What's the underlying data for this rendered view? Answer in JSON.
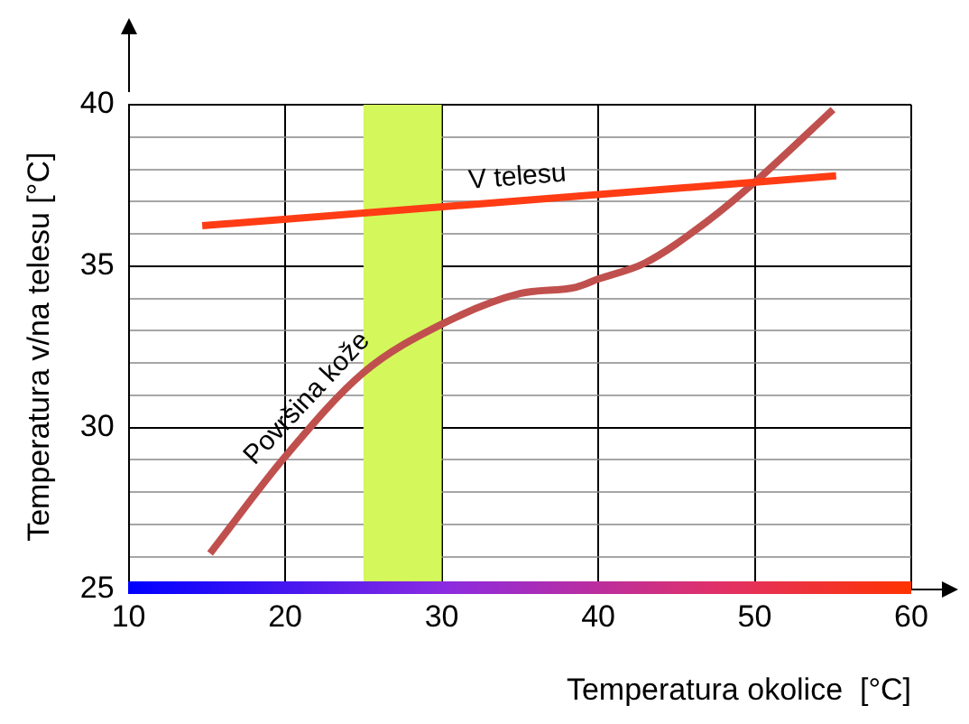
{
  "chart_data": {
    "type": "line",
    "xlabel": "Temperatura okolice  [°C]",
    "ylabel": "Temperatura v/na telesu [°C]",
    "xlim": [
      10,
      60
    ],
    "xticks": [
      10,
      20,
      30,
      40,
      50,
      60
    ],
    "ylim": [
      25,
      40
    ],
    "yticks": [
      25,
      {
        "value": 26,
        "label": null
      },
      {
        "value": 27,
        "label": null
      },
      {
        "value": 28,
        "label": null
      },
      {
        "value": 29,
        "label": null
      },
      30,
      {
        "value": 31,
        "label": null
      },
      {
        "value": 32,
        "label": null
      },
      {
        "value": 33,
        "label": null
      },
      {
        "value": 34,
        "label": null
      },
      35,
      {
        "value": 36,
        "label": null
      },
      {
        "value": 37,
        "label": null
      },
      {
        "value": 38,
        "label": null
      },
      {
        "value": 39,
        "label": null
      },
      40
    ],
    "grid": true,
    "legend": false,
    "marker": "none",
    "line_style": "solid",
    "bands": [
      {
        "axis": "x",
        "from": 25,
        "to": 30,
        "color": "#d4f75c"
      }
    ],
    "series": [
      {
        "name": "V telesu",
        "color": "#ff3c14",
        "x": [
          14.7,
          55.2
        ],
        "values": [
          36.25,
          37.8
        ]
      },
      {
        "name": "Površina kože",
        "color": "#c0504d",
        "x": [
          15.2,
          20,
          25,
          30,
          35,
          38.6,
          40,
          43,
          47,
          50,
          55
        ],
        "values": [
          26.1,
          29.1,
          31.7,
          33.2,
          34.15,
          34.35,
          34.6,
          35.1,
          36.4,
          37.6,
          39.85
        ]
      }
    ]
  }
}
